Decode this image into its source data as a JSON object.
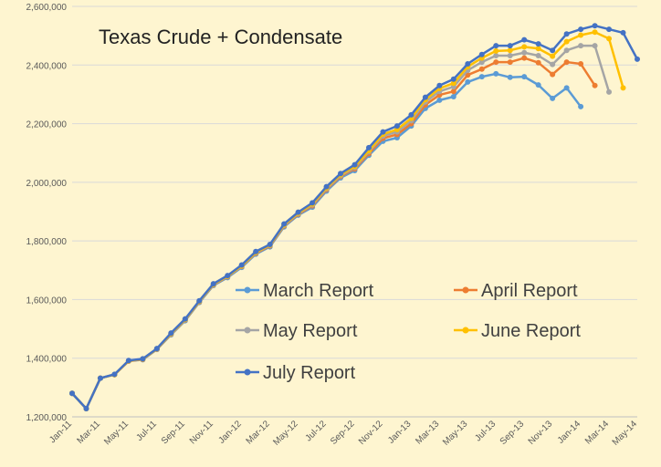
{
  "chart_data": {
    "type": "line",
    "title": "Texas Crude + Condensate",
    "xlabel": "",
    "ylabel": "",
    "ylim": [
      1200000,
      2600000
    ],
    "ytick_labels": [
      "1,200,000",
      "1,400,000",
      "1,600,000",
      "1,800,000",
      "2,000,000",
      "2,200,000",
      "2,400,000",
      "2,600,000"
    ],
    "grid": true,
    "legend": "center-right",
    "x": [
      "Jan-11",
      "Feb-11",
      "Mar-11",
      "Apr-11",
      "May-11",
      "Jun-11",
      "Jul-11",
      "Aug-11",
      "Sep-11",
      "Oct-11",
      "Nov-11",
      "Dec-11",
      "Jan-12",
      "Feb-12",
      "Mar-12",
      "Apr-12",
      "May-12",
      "Jun-12",
      "Jul-12",
      "Aug-12",
      "Sep-12",
      "Oct-12",
      "Nov-12",
      "Dec-12",
      "Jan-13",
      "Feb-13",
      "Mar-13",
      "Apr-13",
      "May-13",
      "Jun-13",
      "Jul-13",
      "Aug-13",
      "Sep-13",
      "Oct-13",
      "Nov-13",
      "Dec-13",
      "Jan-14",
      "Feb-14",
      "Mar-14",
      "Apr-14",
      "May-14"
    ],
    "x_tick_labels": [
      "Jan-11",
      "Mar-11",
      "May-11",
      "Jul-11",
      "Sep-11",
      "Nov-11",
      "Jan-12",
      "Mar-12",
      "May-12",
      "Jul-12",
      "Sep-12",
      "Nov-12",
      "Jan-13",
      "Mar-13",
      "May-13",
      "Jul-13",
      "Sep-13",
      "Nov-13",
      "Jan-14",
      "Mar-14",
      "May-14"
    ],
    "series": [
      {
        "name": "March Report",
        "color": "#5b9bd5",
        "values": [
          1280000,
          1228000,
          1332000,
          1344000,
          1390000,
          1395000,
          1430000,
          1480000,
          1528000,
          1590000,
          1648000,
          1675000,
          1710000,
          1755000,
          1780000,
          1848000,
          1888000,
          1915000,
          1970000,
          2015000,
          2040000,
          2092000,
          2140000,
          2152000,
          2192000,
          2252000,
          2280000,
          2292000,
          2342000,
          2360000,
          2370000,
          2358000,
          2360000,
          2332000,
          2286000,
          2322000,
          2258000,
          null,
          null,
          null,
          null
        ]
      },
      {
        "name": "April Report",
        "color": "#ed7d31",
        "values": [
          1280000,
          1228000,
          1332000,
          1344000,
          1390000,
          1396000,
          1431000,
          1482000,
          1530000,
          1592000,
          1650000,
          1678000,
          1713000,
          1758000,
          1783000,
          1851000,
          1891000,
          1920000,
          1975000,
          2020000,
          2046000,
          2098000,
          2150000,
          2163000,
          2200000,
          2264000,
          2298000,
          2310000,
          2366000,
          2386000,
          2410000,
          2410000,
          2424000,
          2408000,
          2368000,
          2410000,
          2404000,
          2330000,
          null,
          null,
          null
        ]
      },
      {
        "name": "May Report",
        "color": "#a5a5a5",
        "values": [
          1280000,
          1228000,
          1332000,
          1344000,
          1391000,
          1397000,
          1432000,
          1483000,
          1531000,
          1593000,
          1651000,
          1679000,
          1714000,
          1760000,
          1785000,
          1853000,
          1893000,
          1923000,
          1978000,
          2023000,
          2050000,
          2104000,
          2158000,
          2172000,
          2210000,
          2274000,
          2310000,
          2326000,
          2382000,
          2410000,
          2432000,
          2432000,
          2442000,
          2432000,
          2402000,
          2450000,
          2466000,
          2466000,
          2308000,
          null,
          null
        ]
      },
      {
        "name": "June Report",
        "color": "#ffc000",
        "values": [
          1280000,
          1228000,
          1332000,
          1344000,
          1391000,
          1397000,
          1432000,
          1484000,
          1532000,
          1594000,
          1652000,
          1680000,
          1715000,
          1761000,
          1786000,
          1855000,
          1895000,
          1926000,
          1981000,
          2026000,
          2054000,
          2108000,
          2164000,
          2180000,
          2218000,
          2282000,
          2320000,
          2338000,
          2394000,
          2424000,
          2448000,
          2450000,
          2462000,
          2456000,
          2430000,
          2480000,
          2502000,
          2512000,
          2490000,
          2322000,
          null
        ]
      },
      {
        "name": "July Report",
        "color": "#4472c4",
        "values": [
          1280000,
          1228000,
          1332000,
          1345000,
          1392000,
          1398000,
          1433000,
          1486000,
          1534000,
          1596000,
          1654000,
          1682000,
          1718000,
          1764000,
          1788000,
          1858000,
          1898000,
          1930000,
          1985000,
          2030000,
          2060000,
          2118000,
          2172000,
          2192000,
          2230000,
          2290000,
          2330000,
          2352000,
          2404000,
          2436000,
          2466000,
          2466000,
          2486000,
          2472000,
          2450000,
          2506000,
          2522000,
          2534000,
          2522000,
          2510000,
          2420000
        ]
      }
    ]
  }
}
